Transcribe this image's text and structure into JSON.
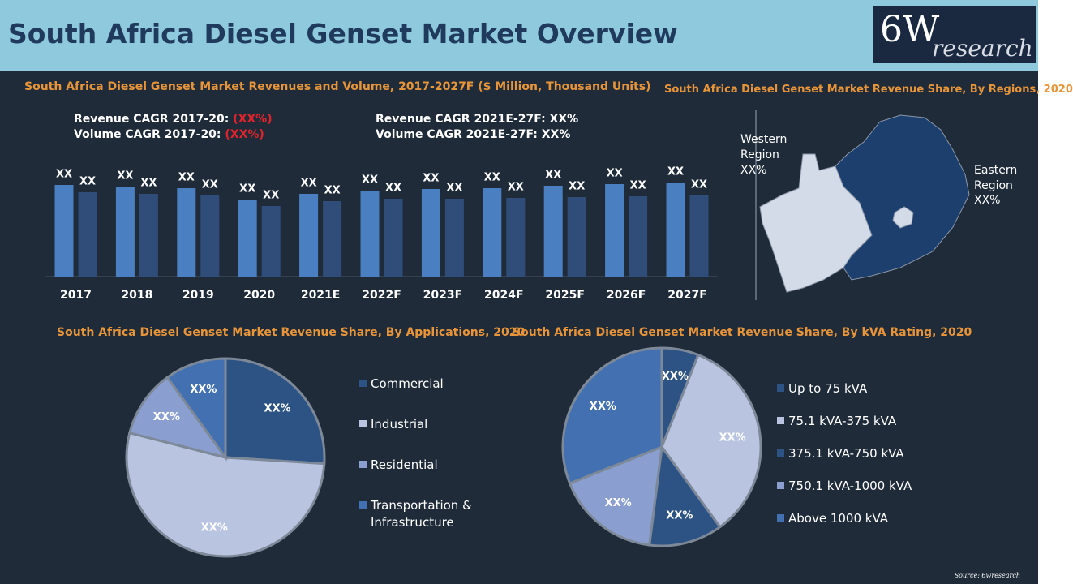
{
  "header": {
    "title": "South Africa Diesel Genset Market Overview",
    "logo": {
      "main": "6W",
      "sub": "research"
    }
  },
  "chart_data": [
    {
      "type": "bar",
      "title": "South Africa Diesel Genset Market Revenues and Volume, 2017-2027F ($ Million, Thousand Units)",
      "annotations": [
        {
          "label": "Revenue CAGR 2017-20:",
          "value": "(XX%)",
          "color": "#e0242b"
        },
        {
          "label": "Volume CAGR 2017-20:",
          "value": "(XX%)",
          "color": "#e0242b"
        },
        {
          "label": "Revenue CAGR 2021E-27F:",
          "value": "XX%",
          "color": "#ffffff"
        },
        {
          "label": "Volume CAGR 2021E-27F:",
          "value": "XX%",
          "color": "#ffffff"
        }
      ],
      "categories": [
        "2017",
        "2018",
        "2019",
        "2020",
        "2021E",
        "2022F",
        "2023F",
        "2024F",
        "2025F",
        "2026F",
        "2027F"
      ],
      "series": [
        {
          "color": "#4a7fc1",
          "values": [
            113,
            111,
            109,
            95,
            102,
            106,
            108,
            109,
            112,
            114,
            116
          ],
          "value_labels": [
            "XX",
            "XX",
            "XX",
            "XX",
            "XX",
            "XX",
            "XX",
            "XX",
            "XX",
            "XX",
            "XX"
          ]
        },
        {
          "color": "#2f4d78",
          "values": [
            104,
            102,
            100,
            87,
            93,
            96,
            96,
            97,
            98,
            99,
            100
          ],
          "value_labels": [
            "XX",
            "XX",
            "XX",
            "XX",
            "XX",
            "XX",
            "XX",
            "XX",
            "XX",
            "XX",
            "XX"
          ]
        }
      ],
      "ylim": [
        0,
        140
      ]
    },
    {
      "type": "map",
      "title": "South Africa Diesel Genset Market Revenue Share, By Regions, 2020",
      "regions": [
        {
          "name": "Western Region",
          "value_label": "XX%",
          "color": "#d3dbe9"
        },
        {
          "name": "Eastern Region",
          "value_label": "XX%",
          "color": "#1c3f6e"
        }
      ]
    },
    {
      "type": "pie",
      "title": "South Africa Diesel Genset Market Revenue Share, By Applications, 2020",
      "categories": [
        "Commercial",
        "Industrial",
        "Residential",
        "Transportation & Infrastructure"
      ],
      "values": [
        26,
        53,
        11,
        10
      ],
      "value_labels": [
        "XX%",
        "XX%",
        "XX%",
        "XX%"
      ],
      "colors": [
        "#2d5384",
        "#b8c4e0",
        "#8a9fcf",
        "#4270b0"
      ]
    },
    {
      "type": "pie",
      "title": "South Africa Diesel Genset Market Revenue Share, By kVA Rating, 2020",
      "categories": [
        "Up to 75 kVA",
        "75.1 kVA-375 kVA",
        "375.1 kVA-750 kVA",
        "750.1 kVA-1000 kVA",
        "Above 1000 kVA"
      ],
      "values": [
        6,
        34,
        12,
        17,
        31
      ],
      "value_labels": [
        "XX%",
        "XX%",
        "XX%",
        "XX%",
        "XX%"
      ],
      "colors": [
        "#2d5384",
        "#b8c4e0",
        "#2d5384",
        "#8a9fcf",
        "#4270b0"
      ]
    }
  ],
  "source": "Source: 6wresearch"
}
